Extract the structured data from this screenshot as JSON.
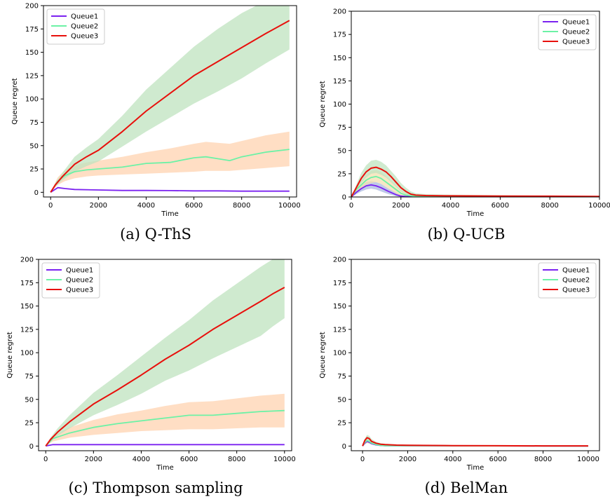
{
  "colors": {
    "queue1": "#7b22f0",
    "queue2": "#6cf2a6",
    "queue3": "#e8100c",
    "band_green": "#bfe3bf",
    "band_orange": "#ffd3b0",
    "band_blue": "#aab8e0"
  },
  "chart_data": [
    {
      "id": "a",
      "type": "line",
      "caption": "(a) Q-ThS",
      "xlabel": "Time",
      "ylabel": "Queue regret",
      "xlim": [
        -300,
        10300
      ],
      "ylim": [
        -5,
        200
      ],
      "xticks": [
        0,
        2000,
        4000,
        6000,
        8000,
        10000
      ],
      "yticks": [
        0,
        25,
        50,
        75,
        100,
        125,
        150,
        175,
        200
      ],
      "legend": "top-left",
      "series": [
        {
          "name": "Queue1",
          "color": "#7b22f0",
          "x": [
            0,
            300,
            600,
            1000,
            2000,
            3000,
            4000,
            5000,
            6000,
            7000,
            8000,
            9000,
            10000
          ],
          "y": [
            0,
            5,
            4,
            3,
            2.5,
            2,
            2,
            1.8,
            1.5,
            1.5,
            1.2,
            1.2,
            1.2
          ]
        },
        {
          "name": "Queue2",
          "color": "#6cf2a6",
          "x": [
            0,
            300,
            600,
            1000,
            1500,
            2000,
            3000,
            4000,
            5000,
            6000,
            6500,
            7000,
            7500,
            8000,
            9000,
            10000
          ],
          "y": [
            0,
            12,
            18,
            22,
            24,
            25,
            27,
            31,
            32,
            37,
            38,
            36,
            34,
            38,
            43,
            46
          ],
          "band_color": "#ffd3b0",
          "band_lo": [
            0,
            8,
            12,
            15,
            17,
            18,
            19,
            20,
            21,
            22,
            23,
            23,
            23,
            24,
            26,
            28
          ],
          "band_hi": [
            0,
            16,
            24,
            29,
            32,
            34,
            38,
            43,
            47,
            52,
            54,
            53,
            52,
            55,
            61,
            65
          ]
        },
        {
          "name": "Queue3",
          "color": "#e8100c",
          "x": [
            0,
            200,
            500,
            1000,
            1500,
            2000,
            3000,
            4000,
            5000,
            6000,
            7000,
            8000,
            9000,
            10000
          ],
          "y": [
            0,
            8,
            17,
            30,
            38,
            45,
            65,
            87,
            106,
            125,
            140,
            155,
            170,
            184
          ],
          "band_color": "#bfe3bf",
          "band_lo": [
            0,
            6,
            13,
            22,
            28,
            33,
            49,
            65,
            80,
            95,
            108,
            122,
            138,
            153
          ],
          "band_hi": [
            0,
            10,
            21,
            38,
            48,
            57,
            82,
            110,
            133,
            156,
            175,
            192,
            205,
            215
          ]
        }
      ]
    },
    {
      "id": "b",
      "type": "line",
      "caption": "(b) Q-UCB",
      "xlabel": "Time",
      "ylabel": "Queue regret",
      "xlim": [
        0,
        10000
      ],
      "ylim": [
        0,
        200
      ],
      "xticks": [
        0,
        2000,
        4000,
        6000,
        8000,
        10000
      ],
      "yticks": [
        0,
        25,
        50,
        75,
        100,
        125,
        150,
        175,
        200
      ],
      "legend": "top-right",
      "series": [
        {
          "name": "Queue1",
          "color": "#7b22f0",
          "x": [
            0,
            200,
            400,
            600,
            800,
            1000,
            1200,
            1500,
            1800,
            2000,
            2200,
            2500,
            3000,
            10000
          ],
          "y": [
            0,
            5,
            9,
            12,
            13,
            12,
            10,
            6,
            2.5,
            1,
            0.5,
            0.2,
            0,
            0
          ],
          "band_color": "#aab8e0",
          "band_lo": [
            0,
            3,
            6,
            8,
            9,
            8,
            6,
            3,
            1,
            0.3,
            0,
            0,
            0,
            0
          ],
          "band_hi": [
            0,
            7,
            12,
            16,
            17,
            16,
            14,
            9,
            5,
            2,
            1,
            0.5,
            0,
            0
          ]
        },
        {
          "name": "Queue2",
          "color": "#6cf2a6",
          "x": [
            0,
            200,
            400,
            600,
            800,
            1000,
            1200,
            1500,
            1800,
            2000,
            2200,
            2500,
            3000,
            10000
          ],
          "y": [
            0,
            8,
            13,
            18,
            21,
            22,
            20,
            14,
            8,
            4,
            2,
            1,
            0.5,
            0
          ],
          "band_color": "#f3e0b0",
          "band_lo": [
            0,
            5,
            9,
            13,
            15,
            16,
            14,
            9,
            4,
            1,
            0,
            0,
            0,
            0
          ],
          "band_hi": [
            0,
            12,
            18,
            24,
            28,
            29,
            27,
            20,
            12,
            7,
            4,
            2,
            1,
            0
          ]
        },
        {
          "name": "Queue3",
          "color": "#e8100c",
          "x": [
            0,
            200,
            400,
            600,
            800,
            1000,
            1200,
            1400,
            1600,
            1800,
            2000,
            2200,
            2400,
            2600,
            3000,
            4000,
            6000,
            8000,
            10000
          ],
          "y": [
            0,
            10,
            20,
            27,
            31,
            32,
            30,
            27,
            22,
            16,
            10,
            6,
            3,
            2,
            1.5,
            1.2,
            1,
            0.8,
            0.5
          ],
          "band_color": "#bfe3bf",
          "band_lo": [
            0,
            7,
            15,
            21,
            25,
            26,
            24,
            21,
            16,
            11,
            6,
            3,
            1,
            0.5,
            0.3,
            0.2,
            0,
            0,
            0
          ],
          "band_hi": [
            0,
            13,
            26,
            34,
            39,
            40,
            38,
            34,
            28,
            22,
            15,
            10,
            6,
            4,
            3,
            2.5,
            2,
            1.6,
            1.2
          ]
        }
      ]
    },
    {
      "id": "c",
      "type": "line",
      "caption": "(c) Thompson sampling",
      "xlabel": "Time",
      "ylabel": "Queue regret",
      "xlim": [
        -300,
        10300
      ],
      "ylim": [
        -5,
        200
      ],
      "xticks": [
        0,
        2000,
        4000,
        6000,
        8000,
        10000
      ],
      "yticks": [
        0,
        25,
        50,
        75,
        100,
        125,
        150,
        175,
        200
      ],
      "legend": "top-left",
      "series": [
        {
          "name": "Queue1",
          "color": "#7b22f0",
          "x": [
            0,
            300,
            1000,
            2000,
            3000,
            4000,
            5000,
            6000,
            7000,
            8000,
            9000,
            10000
          ],
          "y": [
            0,
            1.5,
            1.5,
            1.5,
            1.5,
            1.5,
            1.5,
            1.5,
            1.5,
            1.5,
            1.5,
            1.5
          ]
        },
        {
          "name": "Queue2",
          "color": "#6cf2a6",
          "x": [
            0,
            300,
            1000,
            2000,
            3000,
            4000,
            5000,
            6000,
            7000,
            8000,
            9000,
            10000
          ],
          "y": [
            0,
            8,
            14,
            20,
            24,
            27,
            30,
            33,
            33,
            35,
            37,
            38
          ],
          "band_color": "#ffd3b0",
          "band_lo": [
            0,
            5,
            9,
            12,
            14,
            16,
            17,
            18,
            18,
            19,
            20,
            20
          ],
          "band_hi": [
            0,
            11,
            20,
            28,
            34,
            38,
            43,
            47,
            48,
            51,
            54,
            56
          ]
        },
        {
          "name": "Queue3",
          "color": "#e8100c",
          "x": [
            0,
            200,
            500,
            1000,
            2000,
            3000,
            4000,
            5000,
            6000,
            7000,
            8000,
            9000,
            9500,
            10000
          ],
          "y": [
            0,
            7,
            15,
            26,
            45,
            60,
            76,
            93,
            108,
            125,
            140,
            155,
            163,
            170
          ],
          "band_color": "#bfe3bf",
          "band_lo": [
            0,
            5,
            11,
            19,
            33,
            44,
            56,
            70,
            81,
            94,
            106,
            118,
            128,
            137
          ],
          "band_hi": [
            0,
            9,
            19,
            33,
            57,
            76,
            96,
            116,
            135,
            156,
            174,
            192,
            200,
            205
          ]
        }
      ]
    },
    {
      "id": "d",
      "type": "line",
      "caption": "(d) BelMan",
      "xlabel": "Time",
      "ylabel": "Queue regret",
      "xlim": [
        -500,
        10500
      ],
      "ylim": [
        -5,
        200
      ],
      "xticks": [
        0,
        2000,
        4000,
        6000,
        8000,
        10000
      ],
      "yticks": [
        0,
        25,
        50,
        75,
        100,
        125,
        150,
        175,
        200
      ],
      "legend": "top-right",
      "series": [
        {
          "name": "Queue1",
          "color": "#7b22f0",
          "x": [
            0,
            100,
            200,
            300,
            400,
            600,
            800,
            1000,
            10000
          ],
          "y": [
            0,
            3,
            5,
            4,
            2.5,
            1.2,
            0.6,
            0.3,
            0
          ]
        },
        {
          "name": "Queue2",
          "color": "#6cf2a6",
          "x": [
            0,
            100,
            200,
            300,
            400,
            600,
            800,
            1000,
            10000
          ],
          "y": [
            0,
            4,
            6,
            5,
            3,
            1.5,
            0.8,
            0.4,
            0
          ],
          "band_color": "#f3e0b0",
          "band_lo": [
            0,
            2,
            3,
            2.5,
            1.5,
            0.7,
            0.3,
            0,
            0
          ],
          "band_hi": [
            0,
            6,
            9,
            7.5,
            5,
            2.5,
            1.5,
            0.8,
            0.3
          ]
        },
        {
          "name": "Queue3",
          "color": "#e8100c",
          "x": [
            0,
            100,
            200,
            300,
            400,
            600,
            800,
            1000,
            1500,
            2000,
            4000,
            6000,
            8000,
            10000
          ],
          "y": [
            0,
            6,
            9,
            8,
            5,
            3,
            2,
            1.5,
            1,
            0.8,
            0.5,
            0.3,
            0.2,
            0.2
          ],
          "band_color": "#bfe3bf",
          "band_lo": [
            0,
            4,
            6,
            5,
            3,
            1.8,
            1,
            0.6,
            0.3,
            0.2,
            0,
            0,
            0,
            0
          ],
          "band_hi": [
            0,
            8,
            12,
            11,
            7.5,
            4.5,
            3,
            2.5,
            1.8,
            1.5,
            1,
            0.8,
            0.6,
            0.5
          ]
        }
      ]
    }
  ]
}
